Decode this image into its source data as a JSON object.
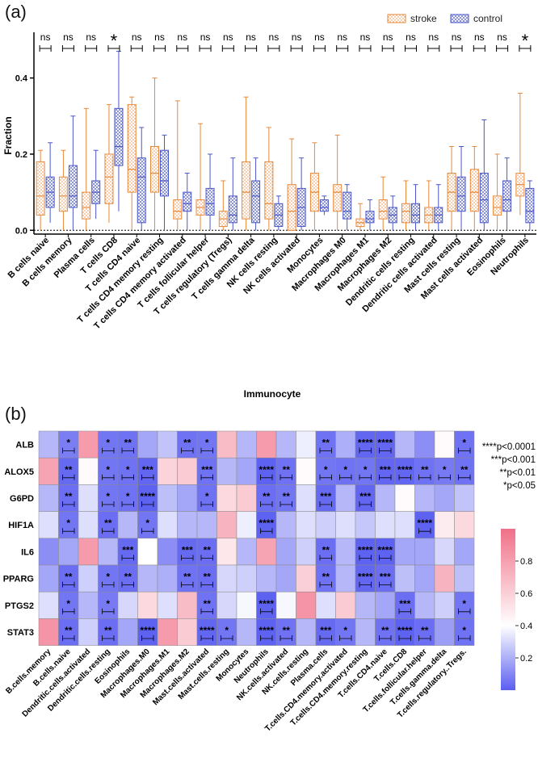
{
  "panel_a_label": "(a)",
  "panel_b_label": "(b)",
  "chart_data": [
    {
      "type": "box",
      "panel": "(a)",
      "ylabel": "Fraction",
      "xlabel": "Immunocyte",
      "ylim": [
        -0.01,
        0.52
      ],
      "yticks": [
        0.0,
        0.2,
        0.4
      ],
      "ytick_labels": [
        "0.0",
        "0.2",
        "0.4"
      ],
      "legend": {
        "position": "top-right",
        "entries": [
          "stroke",
          "control"
        ]
      },
      "colors": {
        "stroke": "#e8893a",
        "control": "#4b57c8"
      },
      "categories": [
        "B cells naive",
        "B cells memory",
        "Plasma cells",
        "T cells CD8",
        "T cells CD4 naive",
        "T cells CD4 memory resting",
        "T cells CD4 memory activated",
        "T cells follicular helper",
        "T cells regulatory (Tregs)",
        "T cells gamma delta",
        "NK cells resting",
        "NK cells activated",
        "Monocytes",
        "Macrophages M0",
        "Macrophages M1",
        "Macrophages M2",
        "Dendritic cells resting",
        "Dendritic cells activated",
        "Mast cells resting",
        "Mast cells activated",
        "Eosinophils",
        "Neutrophils"
      ],
      "significance": [
        "ns",
        "ns",
        "ns",
        "*",
        "ns",
        "ns",
        "ns",
        "ns",
        "ns",
        "ns",
        "ns",
        "ns",
        "ns",
        "ns",
        "ns",
        "ns",
        "ns",
        "ns",
        "ns",
        "ns",
        "ns",
        "*"
      ],
      "series": [
        {
          "name": "stroke",
          "boxes": [
            [
              0.0,
              0.04,
              0.09,
              0.18,
              0.21
            ],
            [
              0.0,
              0.05,
              0.09,
              0.14,
              0.21
            ],
            [
              0.0,
              0.03,
              0.06,
              0.1,
              0.32
            ],
            [
              0.02,
              0.07,
              0.14,
              0.2,
              0.33
            ],
            [
              0.0,
              0.1,
              0.16,
              0.33,
              0.35
            ],
            [
              0.0,
              0.1,
              0.15,
              0.22,
              0.4
            ],
            [
              0.0,
              0.03,
              0.05,
              0.08,
              0.34
            ],
            [
              0.0,
              0.04,
              0.06,
              0.08,
              0.28
            ],
            [
              0.0,
              0.01,
              0.03,
              0.05,
              0.13
            ],
            [
              0.0,
              0.03,
              0.1,
              0.18,
              0.35
            ],
            [
              0.0,
              0.03,
              0.07,
              0.18,
              0.27
            ],
            [
              0.0,
              0.0,
              0.05,
              0.12,
              0.24
            ],
            [
              0.0,
              0.05,
              0.1,
              0.15,
              0.23
            ],
            [
              0.0,
              0.05,
              0.1,
              0.12,
              0.25
            ],
            [
              0.0,
              0.01,
              0.02,
              0.03,
              0.07
            ],
            [
              0.0,
              0.03,
              0.05,
              0.08,
              0.14
            ],
            [
              0.0,
              0.02,
              0.05,
              0.07,
              0.13
            ],
            [
              0.0,
              0.02,
              0.04,
              0.06,
              0.13
            ],
            [
              0.0,
              0.05,
              0.1,
              0.15,
              0.22
            ],
            [
              0.0,
              0.05,
              0.1,
              0.16,
              0.22
            ],
            [
              0.0,
              0.04,
              0.06,
              0.09,
              0.2
            ],
            [
              0.04,
              0.09,
              0.12,
              0.15,
              0.36
            ]
          ]
        },
        {
          "name": "control",
          "boxes": [
            [
              0.02,
              0.06,
              0.1,
              0.14,
              0.23
            ],
            [
              0.0,
              0.06,
              0.09,
              0.17,
              0.3
            ],
            [
              0.03,
              0.07,
              0.1,
              0.13,
              0.21
            ],
            [
              0.05,
              0.17,
              0.22,
              0.32,
              0.47
            ],
            [
              0.0,
              0.02,
              0.14,
              0.19,
              0.27
            ],
            [
              0.0,
              0.09,
              0.13,
              0.21,
              0.25
            ],
            [
              0.0,
              0.05,
              0.07,
              0.1,
              0.15
            ],
            [
              0.0,
              0.04,
              0.07,
              0.11,
              0.2
            ],
            [
              0.0,
              0.02,
              0.04,
              0.09,
              0.19
            ],
            [
              0.0,
              0.02,
              0.09,
              0.13,
              0.19
            ],
            [
              0.0,
              0.01,
              0.04,
              0.07,
              0.09
            ],
            [
              0.0,
              0.01,
              0.06,
              0.11,
              0.19
            ],
            [
              0.04,
              0.05,
              0.06,
              0.08,
              0.09
            ],
            [
              0.0,
              0.03,
              0.05,
              0.1,
              0.12
            ],
            [
              0.0,
              0.02,
              0.03,
              0.05,
              0.08
            ],
            [
              0.0,
              0.02,
              0.04,
              0.06,
              0.09
            ],
            [
              0.0,
              0.02,
              0.04,
              0.07,
              0.12
            ],
            [
              0.0,
              0.02,
              0.04,
              0.06,
              0.12
            ],
            [
              0.0,
              0.05,
              0.09,
              0.14,
              0.22
            ],
            [
              0.0,
              0.02,
              0.08,
              0.15,
              0.29
            ],
            [
              0.0,
              0.05,
              0.08,
              0.13,
              0.19
            ],
            [
              0.0,
              0.02,
              0.05,
              0.11,
              0.13
            ]
          ]
        }
      ]
    },
    {
      "type": "heatmap",
      "panel": "(b)",
      "rows": [
        "ALB",
        "ALOX5",
        "G6PD",
        "HIF1A",
        "IL6",
        "PPARG",
        "PTGS2",
        "STAT3"
      ],
      "columns": [
        "B.cells.memory",
        "B.cells.naive",
        "Dendritic.cells.activated",
        "Dendritic.cells.resting",
        "Eosinophils",
        "Macrophages.M0",
        "Macrophages.M1",
        "Macrophages.M2",
        "Mast.cells.activated",
        "Mast.cells.resting",
        "Monocytes",
        "Neutrophils",
        "NK.cells.activated",
        "NK.cells.resting",
        "Plasma.cells",
        "T.cells.CD4.memory.activated",
        "T.cells.CD4.memory.resting",
        "T.cells.CD4.naive",
        "T.cells.CD8",
        "T.cells.follicular.helper",
        "T.cells.gamma.delta",
        "T.cells.regulatory..Tregs."
      ],
      "colorbar": {
        "min": 0.0,
        "max": 1.0,
        "ticks": [
          0.2,
          0.4,
          0.6,
          0.8
        ],
        "tick_labels": [
          "0.2",
          "0.4",
          "0.6",
          "0.8"
        ],
        "low_color": "#5a5ef0",
        "mid_color": "#ffffff",
        "high_color": "#f07088"
      },
      "values": [
        [
          0.22,
          0.08,
          0.82,
          0.06,
          0.05,
          0.18,
          0.25,
          0.05,
          0.06,
          0.68,
          0.22,
          0.82,
          0.22,
          0.36,
          0.05,
          0.2,
          0.02,
          0.02,
          0.22,
          0.12,
          0.42,
          0.05
        ],
        [
          0.78,
          0.03,
          0.42,
          0.06,
          0.05,
          0.02,
          0.58,
          0.62,
          0.05,
          0.22,
          0.18,
          0.01,
          0.05,
          0.42,
          0.06,
          0.05,
          0.06,
          0.02,
          0.02,
          0.05,
          0.07,
          0.05
        ],
        [
          0.22,
          0.04,
          0.32,
          0.06,
          0.05,
          0.01,
          0.24,
          0.18,
          0.05,
          0.56,
          0.62,
          0.04,
          0.06,
          0.32,
          0.03,
          0.22,
          0.02,
          0.22,
          0.42,
          0.22,
          0.18,
          0.25
        ],
        [
          0.32,
          0.06,
          0.32,
          0.04,
          0.22,
          0.06,
          0.32,
          0.22,
          0.22,
          0.72,
          0.36,
          0.01,
          0.22,
          0.32,
          0.28,
          0.32,
          0.26,
          0.32,
          0.32,
          0.01,
          0.48,
          0.56
        ],
        [
          0.12,
          0.18,
          0.82,
          0.22,
          0.03,
          0.4,
          0.12,
          0.03,
          0.04,
          0.5,
          0.22,
          0.78,
          0.18,
          0.28,
          0.04,
          0.22,
          0.01,
          0.01,
          0.18,
          0.18,
          0.3,
          0.18
        ],
        [
          0.18,
          0.04,
          0.28,
          0.06,
          0.04,
          0.22,
          0.2,
          0.05,
          0.04,
          0.3,
          0.28,
          0.22,
          0.18,
          0.6,
          0.05,
          0.22,
          0.02,
          0.04,
          0.24,
          0.18,
          0.72,
          0.24
        ],
        [
          0.32,
          0.06,
          0.22,
          0.07,
          0.3,
          0.56,
          0.32,
          0.68,
          0.05,
          0.3,
          0.38,
          0.01,
          0.38,
          0.85,
          0.32,
          0.62,
          0.22,
          0.18,
          0.04,
          0.22,
          0.28,
          0.06
        ],
        [
          0.85,
          0.04,
          0.28,
          0.04,
          0.18,
          0.01,
          0.82,
          0.62,
          0.02,
          0.06,
          0.22,
          0.01,
          0.05,
          0.22,
          0.03,
          0.06,
          0.22,
          0.05,
          0.01,
          0.04,
          0.16,
          0.05
        ]
      ],
      "stars": [
        [
          "",
          "*",
          "",
          "*",
          "**",
          "",
          "",
          "**",
          "*",
          "",
          "",
          "",
          "",
          "",
          "**",
          "",
          "****",
          "****",
          "",
          "",
          "",
          "*"
        ],
        [
          "",
          "**",
          "",
          "*",
          "*",
          "***",
          "",
          "",
          "***",
          "",
          "",
          "****",
          "**",
          "",
          "*",
          "*",
          "*",
          "***",
          "****",
          "**",
          "*",
          "**"
        ],
        [
          "",
          "**",
          "",
          "*",
          "*",
          "****",
          "",
          "",
          "*",
          "",
          "",
          "**",
          "**",
          "",
          "***",
          "",
          "***",
          "",
          "",
          "",
          "",
          ""
        ],
        [
          "",
          "*",
          "",
          "**",
          "",
          "*",
          "",
          "",
          "",
          "",
          "",
          "****",
          "",
          "",
          "",
          "",
          "",
          "",
          "",
          "****",
          "",
          ""
        ],
        [
          "",
          "",
          "",
          "",
          "***",
          "",
          "",
          "***",
          "**",
          "",
          "",
          "",
          "",
          "",
          "**",
          "",
          "****",
          "****",
          "",
          "",
          "",
          ""
        ],
        [
          "",
          "**",
          "",
          "*",
          "**",
          "",
          "",
          "**",
          "**",
          "",
          "",
          "",
          "",
          "",
          "**",
          "",
          "****",
          "***",
          "",
          "",
          "",
          ""
        ],
        [
          "",
          "*",
          "",
          "*",
          "",
          "",
          "",
          "",
          "**",
          "",
          "",
          "****",
          "",
          "",
          "",
          "",
          "",
          "",
          "***",
          "",
          "",
          "*"
        ],
        [
          "",
          "**",
          "",
          "**",
          "",
          "****",
          "",
          "",
          "****",
          "*",
          "",
          "****",
          "**",
          "",
          "***",
          "*",
          "",
          "**",
          "****",
          "**",
          "",
          "*"
        ]
      ],
      "significance_legend": [
        "****p<0.0001",
        "***p<0.001",
        "**p<0.01",
        "*p<0.05"
      ]
    }
  ]
}
